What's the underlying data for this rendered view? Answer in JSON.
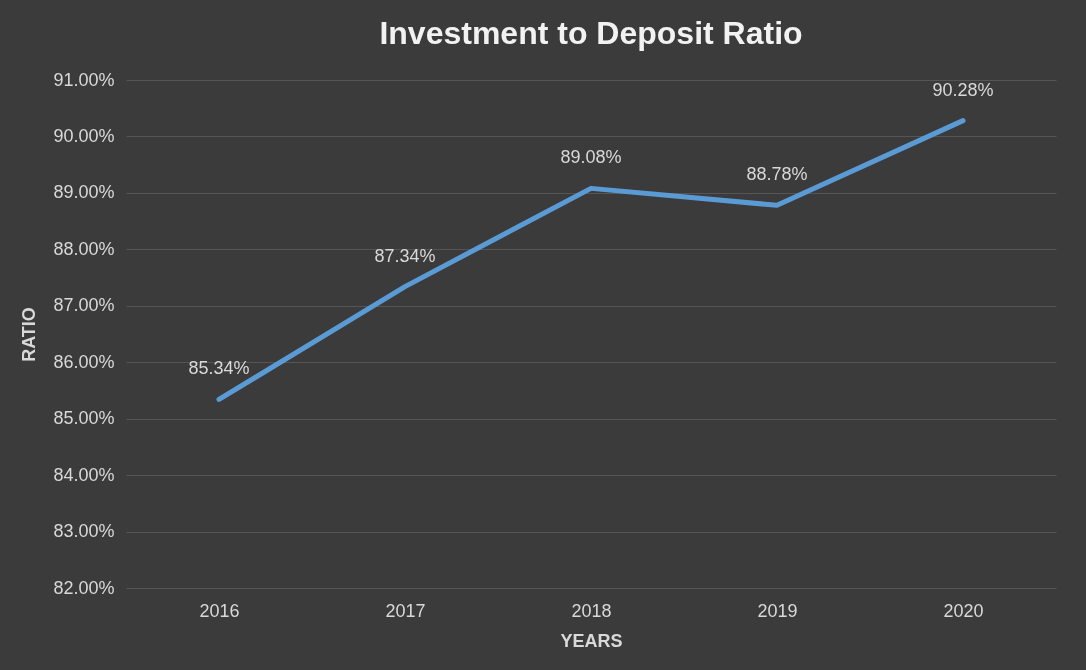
{
  "chart_data": {
    "type": "line",
    "title": "Investment to Deposit Ratio",
    "xlabel": "YEARS",
    "ylabel": "RATIO",
    "categories": [
      "2016",
      "2017",
      "2018",
      "2019",
      "2020"
    ],
    "series": [
      {
        "color": "#5b9bd5",
        "values": [
          85.34,
          87.34,
          89.08,
          88.78,
          90.28
        ],
        "value_labels": [
          "85.34%",
          "87.34%",
          "89.08%",
          "88.78%",
          "90.28%"
        ]
      }
    ],
    "ylim": [
      82,
      91
    ],
    "yticks": [
      {
        "value": 82,
        "label": "82.00%"
      },
      {
        "value": 83,
        "label": "83.00%"
      },
      {
        "value": 84,
        "label": "84.00%"
      },
      {
        "value": 85,
        "label": "85.00%"
      },
      {
        "value": 86,
        "label": "86.00%"
      },
      {
        "value": 87,
        "label": "87.00%"
      },
      {
        "value": 88,
        "label": "88.00%"
      },
      {
        "value": 89,
        "label": "89.00%"
      },
      {
        "value": 90,
        "label": "90.00%"
      },
      {
        "value": 91,
        "label": "91.00%"
      }
    ],
    "grid": "y",
    "legend": false,
    "marker": "none",
    "line_style": "solid"
  }
}
